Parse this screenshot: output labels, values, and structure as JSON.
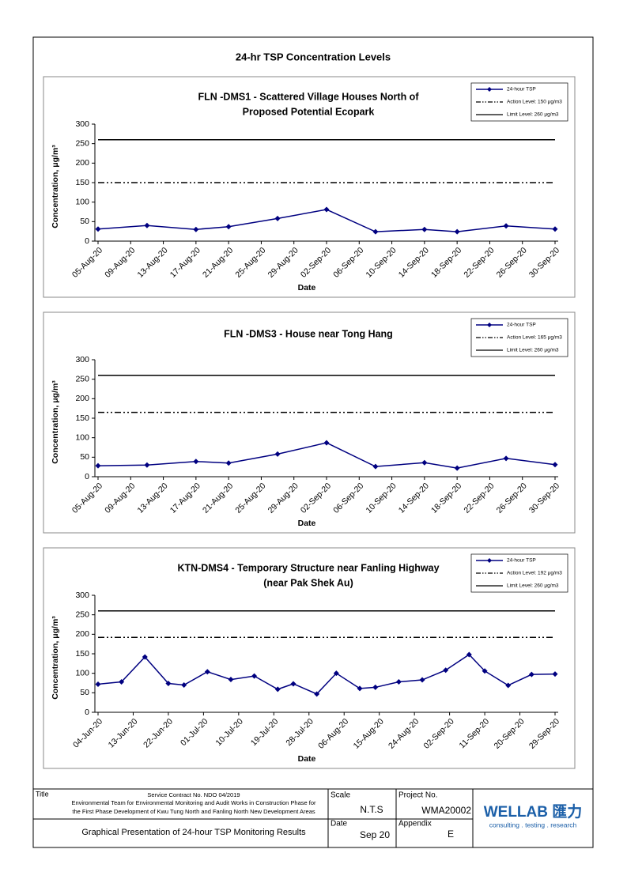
{
  "page_title": "24-hr TSP Concentration Levels",
  "chart_data": [
    {
      "type": "line",
      "title": [
        "FLN -DMS1 - Scattered Village Houses North of",
        "Proposed Potential Ecopark"
      ],
      "x_label": "Date",
      "y_label": "Concentration, μg/m³",
      "x": [
        "2020-08-05",
        "2020-08-11",
        "2020-08-17",
        "2020-08-21",
        "2020-08-27",
        "2020-09-02",
        "2020-09-08",
        "2020-09-14",
        "2020-09-18",
        "2020-09-24",
        "2020-09-30"
      ],
      "series": [
        {
          "name": "24-hour TSP",
          "color": "#000080",
          "values": [
            31,
            40,
            30,
            37,
            58,
            81,
            24,
            30,
            24,
            39,
            31
          ]
        }
      ],
      "reference_lines": [
        {
          "name": "Action Level: 150 μg/m3",
          "value": 150,
          "style": "dash-dot",
          "color": "#000000"
        },
        {
          "name": "Limit Level: 260 μg/m3",
          "value": 260,
          "style": "solid",
          "color": "#000000"
        }
      ],
      "xlim": [
        "2020-08-05",
        "2020-09-30"
      ],
      "xticks": [
        {
          "value": "2020-08-05",
          "label": "05-Aug-20"
        },
        {
          "value": "2020-08-09",
          "label": "09-Aug-20"
        },
        {
          "value": "2020-08-13",
          "label": "13-Aug-20"
        },
        {
          "value": "2020-08-17",
          "label": "17-Aug-20"
        },
        {
          "value": "2020-08-21",
          "label": "21-Aug-20"
        },
        {
          "value": "2020-08-25",
          "label": "25-Aug-20"
        },
        {
          "value": "2020-08-29",
          "label": "29-Aug-20"
        },
        {
          "value": "2020-09-02",
          "label": "02-Sep-20"
        },
        {
          "value": "2020-09-06",
          "label": "06-Sep-20"
        },
        {
          "value": "2020-09-10",
          "label": "10-Sep-20"
        },
        {
          "value": "2020-09-14",
          "label": "14-Sep-20"
        },
        {
          "value": "2020-09-18",
          "label": "18-Sep-20"
        },
        {
          "value": "2020-09-22",
          "label": "22-Sep-20"
        },
        {
          "value": "2020-09-26",
          "label": "26-Sep-20"
        },
        {
          "value": "2020-09-30",
          "label": "30-Sep-20"
        }
      ],
      "ylim": [
        0,
        300
      ],
      "yticks": [
        0,
        50,
        100,
        150,
        200,
        250,
        300
      ],
      "grid": false,
      "legend": "top-right"
    },
    {
      "type": "line",
      "title": [
        "FLN -DMS3 - House near Tong Hang"
      ],
      "x_label": "Date",
      "y_label": "Concentration, μg/m³",
      "x": [
        "2020-08-05",
        "2020-08-11",
        "2020-08-17",
        "2020-08-21",
        "2020-08-27",
        "2020-09-02",
        "2020-09-08",
        "2020-09-14",
        "2020-09-18",
        "2020-09-24",
        "2020-09-30"
      ],
      "series": [
        {
          "name": "24-hour TSP",
          "color": "#000080",
          "values": [
            28,
            30,
            39,
            35,
            58,
            87,
            26,
            36,
            22,
            47,
            31
          ]
        }
      ],
      "reference_lines": [
        {
          "name": "Action Level: 165 μg/m3",
          "value": 165,
          "style": "dash-dot",
          "color": "#000000"
        },
        {
          "name": "Limit Level: 260 μg/m3",
          "value": 260,
          "style": "solid",
          "color": "#000000"
        }
      ],
      "xlim": [
        "2020-08-05",
        "2020-09-30"
      ],
      "xticks": [
        {
          "value": "2020-08-05",
          "label": "05-Aug-20"
        },
        {
          "value": "2020-08-09",
          "label": "09-Aug-20"
        },
        {
          "value": "2020-08-13",
          "label": "13-Aug-20"
        },
        {
          "value": "2020-08-17",
          "label": "17-Aug-20"
        },
        {
          "value": "2020-08-21",
          "label": "21-Aug-20"
        },
        {
          "value": "2020-08-25",
          "label": "25-Aug-20"
        },
        {
          "value": "2020-08-29",
          "label": "29-Aug-20"
        },
        {
          "value": "2020-09-02",
          "label": "02-Sep-20"
        },
        {
          "value": "2020-09-06",
          "label": "06-Sep-20"
        },
        {
          "value": "2020-09-10",
          "label": "10-Sep-20"
        },
        {
          "value": "2020-09-14",
          "label": "14-Sep-20"
        },
        {
          "value": "2020-09-18",
          "label": "18-Sep-20"
        },
        {
          "value": "2020-09-22",
          "label": "22-Sep-20"
        },
        {
          "value": "2020-09-26",
          "label": "26-Sep-20"
        },
        {
          "value": "2020-09-30",
          "label": "30-Sep-20"
        }
      ],
      "ylim": [
        0,
        300
      ],
      "yticks": [
        0,
        50,
        100,
        150,
        200,
        250,
        300
      ],
      "grid": false,
      "legend": "top-right"
    },
    {
      "type": "line",
      "title": [
        "KTN-DMS4 - Temporary Structure near Fanling Highway",
        "(near Pak Shek Au)"
      ],
      "x_label": "Date",
      "y_label": "Concentration, μg/m³",
      "x": [
        "2020-06-04",
        "2020-06-10",
        "2020-06-16",
        "2020-06-22",
        "2020-06-26",
        "2020-07-02",
        "2020-07-08",
        "2020-07-14",
        "2020-07-20",
        "2020-07-24",
        "2020-07-30",
        "2020-08-04",
        "2020-08-10",
        "2020-08-14",
        "2020-08-20",
        "2020-08-26",
        "2020-09-01",
        "2020-09-07",
        "2020-09-11",
        "2020-09-17",
        "2020-09-23",
        "2020-09-29"
      ],
      "series": [
        {
          "name": "24-hour TSP",
          "color": "#000080",
          "values": [
            72,
            78,
            142,
            74,
            70,
            104,
            84,
            93,
            59,
            73,
            47,
            100,
            61,
            64,
            78,
            83,
            108,
            148,
            106,
            69,
            97,
            98
          ]
        }
      ],
      "reference_lines": [
        {
          "name": "Action Level: 192 μg/m3",
          "value": 192,
          "style": "dash-dot",
          "color": "#000000"
        },
        {
          "name": "Limit Level: 260 μg/m3",
          "value": 260,
          "style": "solid",
          "color": "#000000"
        }
      ],
      "xlim": [
        "2020-06-04",
        "2020-09-29"
      ],
      "xticks": [
        {
          "value": "2020-06-04",
          "label": "04-Jun-20"
        },
        {
          "value": "2020-06-13",
          "label": "13-Jun-20"
        },
        {
          "value": "2020-06-22",
          "label": "22-Jun-20"
        },
        {
          "value": "2020-07-01",
          "label": "01-Jul-20"
        },
        {
          "value": "2020-07-10",
          "label": "10-Jul-20"
        },
        {
          "value": "2020-07-19",
          "label": "19-Jul-20"
        },
        {
          "value": "2020-07-28",
          "label": "28-Jul-20"
        },
        {
          "value": "2020-08-06",
          "label": "06-Aug-20"
        },
        {
          "value": "2020-08-15",
          "label": "15-Aug-20"
        },
        {
          "value": "2020-08-24",
          "label": "24-Aug-20"
        },
        {
          "value": "2020-09-02",
          "label": "02-Sep-20"
        },
        {
          "value": "2020-09-11",
          "label": "11-Sep-20"
        },
        {
          "value": "2020-09-20",
          "label": "20-Sep-20"
        },
        {
          "value": "2020-09-29",
          "label": "29-Sep-20"
        }
      ],
      "ylim": [
        0,
        300
      ],
      "yticks": [
        0,
        50,
        100,
        150,
        200,
        250,
        300
      ],
      "grid": false,
      "legend": "top-right"
    }
  ],
  "footer": {
    "title_label": "Title",
    "contract": "Service Contract No. NDO 04/2019",
    "project_line1": "Environmental Team for Environmental Monitoring and Audit Works in Construction Phase for",
    "project_line2": "the First Phase Development of Kwu Tung North and Fanling North New Development Areas",
    "drawing_title": "Graphical Presentation of 24-hour TSP Monitoring Results",
    "scale_label": "Scale",
    "scale": "N.T.S",
    "project_no_label": "Project No.",
    "project_no": "WMA20002",
    "date_label": "Date",
    "date": "Sep 20",
    "appendix_label": "Appendix",
    "appendix": "E",
    "logo": "WELLAB 匯力",
    "tagline": "consulting . testing . research"
  }
}
